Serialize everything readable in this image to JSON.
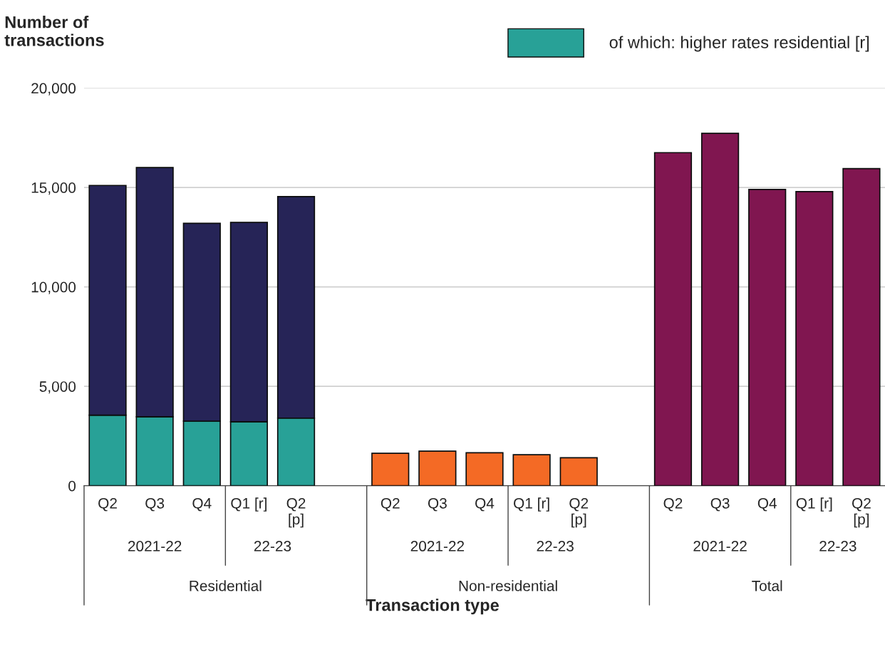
{
  "chart_data": {
    "type": "bar",
    "ylabel": "Number of transactions",
    "xlabel": "Transaction type",
    "categories": [
      "Q2",
      "Q3",
      "Q4",
      "Q1 [r]",
      "Q2\n[p]",
      null,
      "Q2",
      "Q3",
      "Q4",
      "Q1 [r]",
      "Q2\n[p]",
      null,
      "Q2",
      "Q3",
      "Q4",
      "Q1 [r]",
      "Q2\n[p]"
    ],
    "stacked": true,
    "series": [
      {
        "name": "of which: higher rates residential [r]",
        "color": "#28a197",
        "values": [
          3550,
          3470,
          3250,
          3220,
          3400,
          null,
          null,
          null,
          null,
          null,
          null,
          null,
          null,
          null,
          null,
          null,
          null
        ]
      },
      {
        "color": "#262457",
        "values": [
          11550,
          12530,
          9950,
          10020,
          11140,
          null,
          null,
          null,
          null,
          null,
          null,
          null,
          null,
          null,
          null,
          null,
          null
        ]
      },
      {
        "color": "#f46a25",
        "values": [
          null,
          null,
          null,
          null,
          null,
          null,
          1630,
          1740,
          1660,
          1560,
          1410,
          null,
          null,
          null,
          null,
          null,
          null
        ]
      },
      {
        "color": "#801650",
        "values": [
          null,
          null,
          null,
          null,
          null,
          null,
          null,
          null,
          null,
          null,
          null,
          null,
          16750,
          17720,
          14900,
          14790,
          15950
        ]
      }
    ],
    "ylim": [
      0,
      20000
    ],
    "yticks": [
      {
        "value": 0,
        "label": "0"
      },
      {
        "value": 5000,
        "label": "5,000"
      },
      {
        "value": 10000,
        "label": "10,000"
      },
      {
        "value": 15000,
        "label": "15,000"
      },
      {
        "value": 20000,
        "label": "20,000"
      }
    ],
    "grid": "y",
    "legend": "top right",
    "annotations": [
      "2021-22",
      "22-23",
      "2021-22",
      "22-23",
      "2021-22",
      "22-23",
      "Residential",
      "Non-residential",
      "Total"
    ]
  }
}
